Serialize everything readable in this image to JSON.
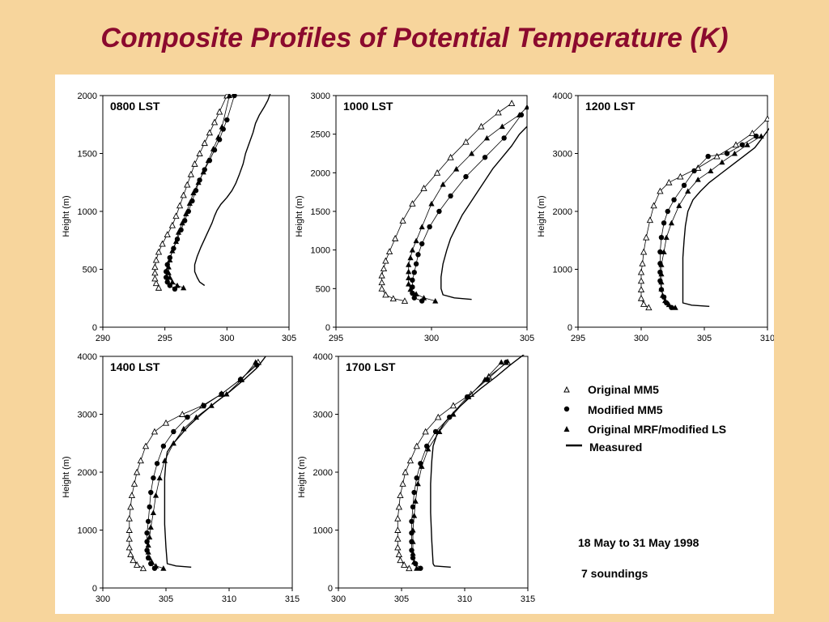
{
  "slide": {
    "title": "Composite Profiles of Potential Temperature (K)"
  },
  "legend": {
    "items": [
      {
        "label": "Original MM5",
        "marker": "open-triangle"
      },
      {
        "label": "Modified MM5",
        "marker": "filled-circle"
      },
      {
        "label": "Original MRF/modified LS",
        "marker": "filled-triangle"
      },
      {
        "label": "Measured",
        "marker": "line"
      }
    ]
  },
  "notes": {
    "period": "18 May to 31 May 1998",
    "soundings": "7 soundings"
  },
  "colors": {
    "background": "#f7d59c",
    "title": "#8b0a2e",
    "plot": "#000000"
  },
  "chart_data": [
    {
      "type": "line",
      "panel_label": "0800 LST",
      "ylabel": "Height (m)",
      "xlim": [
        290,
        305
      ],
      "ylim": [
        0,
        2000
      ],
      "xticks": [
        290,
        295,
        300,
        305
      ],
      "yticks": [
        0,
        500,
        1000,
        1500,
        2000
      ],
      "series": [
        {
          "name": "Original MM5",
          "marker": "open-triangle",
          "x": [
            294.5,
            294.3,
            294.2,
            294.2,
            294.2,
            294.3,
            294.5,
            294.8,
            295.2,
            295.6,
            295.9,
            296.2,
            296.5,
            296.8,
            297.1,
            297.4,
            297.8,
            298.2,
            298.6,
            299.0,
            299.4,
            300.0
          ],
          "y": [
            340,
            380,
            420,
            470,
            520,
            580,
            650,
            720,
            800,
            880,
            960,
            1050,
            1140,
            1230,
            1320,
            1410,
            1500,
            1590,
            1680,
            1770,
            1860,
            2000
          ]
        },
        {
          "name": "Modified MM5",
          "marker": "filled-circle",
          "x": [
            295.8,
            295.4,
            295.2,
            295.1,
            295.1,
            295.2,
            295.4,
            295.7,
            296.0,
            296.3,
            296.6,
            296.9,
            297.2,
            297.5,
            297.8,
            298.2,
            298.6,
            299.0,
            299.4,
            299.7,
            300.0,
            300.6
          ],
          "y": [
            330,
            360,
            390,
            430,
            480,
            540,
            600,
            680,
            760,
            840,
            920,
            1000,
            1090,
            1180,
            1270,
            1360,
            1440,
            1530,
            1620,
            1710,
            1790,
            2000
          ]
        },
        {
          "name": "Original MRF/modified LS",
          "marker": "filled-triangle",
          "x": [
            296.5,
            296.0,
            295.6,
            295.4,
            295.3,
            295.3,
            295.4,
            295.6,
            295.9,
            296.1,
            296.4,
            296.7,
            297.0,
            297.3,
            297.7,
            298.1,
            298.5,
            298.9,
            299.3,
            299.6,
            300.2
          ],
          "y": [
            340,
            360,
            390,
            430,
            470,
            520,
            580,
            660,
            740,
            820,
            900,
            980,
            1070,
            1160,
            1250,
            1340,
            1440,
            1540,
            1640,
            1730,
            2000
          ]
        },
        {
          "name": "Measured",
          "marker": "line",
          "x": [
            298.2,
            297.8,
            297.6,
            297.4,
            297.4,
            297.6,
            297.9,
            298.2,
            298.5,
            298.8,
            299.0,
            299.2,
            299.5,
            300.0,
            300.4,
            300.7,
            301.0,
            301.3,
            301.5,
            301.8,
            302.1,
            302.3,
            302.6,
            303.0,
            303.3,
            303.5
          ],
          "y": [
            360,
            390,
            430,
            480,
            540,
            610,
            690,
            760,
            830,
            900,
            960,
            1010,
            1060,
            1120,
            1180,
            1240,
            1320,
            1410,
            1500,
            1590,
            1680,
            1760,
            1830,
            1900,
            1960,
            2020
          ]
        }
      ]
    },
    {
      "type": "line",
      "panel_label": "1000 LST",
      "ylabel": "Height (m)",
      "xlim": [
        295,
        305
      ],
      "ylim": [
        0,
        3000
      ],
      "xticks": [
        295,
        300,
        305
      ],
      "yticks": [
        0,
        500,
        1000,
        1500,
        2000,
        2500,
        3000
      ],
      "series": [
        {
          "name": "Original MM5",
          "marker": "open-triangle",
          "x": [
            298.6,
            298.0,
            297.6,
            297.4,
            297.4,
            297.4,
            297.5,
            297.6,
            297.8,
            298.1,
            298.5,
            299.0,
            299.6,
            300.3,
            301.0,
            301.8,
            302.6,
            303.5,
            304.2
          ],
          "y": [
            340,
            370,
            420,
            500,
            580,
            670,
            760,
            860,
            980,
            1150,
            1380,
            1600,
            1800,
            2000,
            2200,
            2400,
            2600,
            2780,
            2900
          ]
        },
        {
          "name": "Modified MM5",
          "marker": "filled-circle",
          "x": [
            299.5,
            299.1,
            299.0,
            299.0,
            299.0,
            299.1,
            299.2,
            299.3,
            299.5,
            299.9,
            300.4,
            301.0,
            301.8,
            302.8,
            303.8,
            304.7
          ],
          "y": [
            340,
            380,
            440,
            520,
            610,
            710,
            820,
            940,
            1080,
            1300,
            1500,
            1700,
            1950,
            2200,
            2450,
            2750
          ]
        },
        {
          "name": "Original MRF/modified LS",
          "marker": "filled-triangle",
          "x": [
            300.2,
            299.6,
            299.2,
            298.9,
            298.8,
            298.8,
            298.8,
            298.8,
            298.9,
            299.0,
            299.2,
            299.5,
            300.0,
            300.6,
            301.3,
            302.1,
            302.9,
            303.7,
            304.6,
            305.0
          ],
          "y": [
            340,
            380,
            430,
            490,
            560,
            640,
            720,
            810,
            900,
            1000,
            1120,
            1300,
            1600,
            1850,
            2050,
            2250,
            2450,
            2600,
            2750,
            2850
          ]
        },
        {
          "name": "Measured",
          "marker": "line",
          "x": [
            302.1,
            301.2,
            300.6,
            300.5,
            300.5,
            300.6,
            300.8,
            301.0,
            301.3,
            301.6,
            302.0,
            302.4,
            302.8,
            303.2,
            303.7,
            304.2,
            304.6,
            305.0
          ],
          "y": [
            360,
            380,
            420,
            500,
            650,
            820,
            1000,
            1150,
            1300,
            1450,
            1600,
            1750,
            1900,
            2050,
            2200,
            2350,
            2500,
            2600
          ]
        }
      ]
    },
    {
      "type": "line",
      "panel_label": "1200 LST",
      "ylabel": "Height (m)",
      "xlim": [
        295,
        310
      ],
      "ylim": [
        0,
        4000
      ],
      "xticks": [
        295,
        300,
        305,
        310
      ],
      "yticks": [
        0,
        1000,
        2000,
        3000,
        4000
      ],
      "series": [
        {
          "name": "Original MM5",
          "marker": "open-triangle",
          "x": [
            300.6,
            300.2,
            300.0,
            300.0,
            300.0,
            300.0,
            300.1,
            300.2,
            300.4,
            300.7,
            301.0,
            301.5,
            302.2,
            303.1,
            304.5,
            306.0,
            307.5,
            308.8,
            310.0
          ],
          "y": [
            340,
            400,
            500,
            650,
            800,
            950,
            1100,
            1300,
            1550,
            1850,
            2100,
            2350,
            2500,
            2600,
            2750,
            2950,
            3150,
            3350,
            3600
          ]
        },
        {
          "name": "Modified MM5",
          "marker": "filled-circle",
          "x": [
            302.4,
            302.0,
            301.8,
            301.6,
            301.5,
            301.5,
            301.5,
            301.5,
            301.6,
            301.8,
            302.1,
            302.6,
            303.4,
            304.2,
            305.3,
            306.8,
            308.0,
            309.1
          ],
          "y": [
            340,
            420,
            520,
            650,
            800,
            950,
            1100,
            1300,
            1550,
            1800,
            2000,
            2200,
            2450,
            2700,
            2950,
            3000,
            3150,
            3300
          ]
        },
        {
          "name": "Original MRF/modified LS",
          "marker": "filled-triangle",
          "x": [
            302.7,
            302.2,
            301.9,
            301.7,
            301.6,
            301.6,
            301.6,
            301.6,
            301.8,
            302.0,
            302.4,
            303.0,
            303.7,
            304.5,
            305.5,
            306.4,
            307.4,
            308.4,
            309.5
          ],
          "y": [
            340,
            390,
            460,
            550,
            660,
            780,
            920,
            1080,
            1300,
            1550,
            1800,
            2100,
            2350,
            2550,
            2700,
            2850,
            3000,
            3150,
            3300
          ]
        },
        {
          "name": "Measured",
          "marker": "line",
          "x": [
            305.4,
            304.0,
            303.3,
            303.3,
            303.3,
            303.3,
            303.4,
            303.5,
            303.7,
            304.1,
            304.7,
            305.4,
            306.3,
            307.2,
            308.1,
            309.0,
            309.7,
            310.2
          ],
          "y": [
            360,
            380,
            420,
            600,
            900,
            1200,
            1500,
            1750,
            2000,
            2200,
            2350,
            2500,
            2650,
            2800,
            2950,
            3100,
            3300,
            3450
          ]
        }
      ]
    },
    {
      "type": "line",
      "panel_label": "1400 LST",
      "ylabel": "Height (m)",
      "xlim": [
        300,
        315
      ],
      "ylim": [
        0,
        4000
      ],
      "xticks": [
        300,
        305,
        310,
        315
      ],
      "yticks": [
        0,
        1000,
        2000,
        3000,
        4000
      ],
      "series": [
        {
          "name": "Original MM5",
          "marker": "open-triangle",
          "x": [
            303.2,
            302.7,
            302.4,
            302.2,
            302.1,
            302.1,
            302.1,
            302.1,
            302.2,
            302.3,
            302.5,
            302.7,
            303.0,
            303.4,
            304.1,
            305.0,
            306.3,
            307.9,
            309.4,
            310.9,
            312.3
          ],
          "y": [
            340,
            400,
            480,
            580,
            700,
            850,
            1000,
            1200,
            1400,
            1600,
            1800,
            2000,
            2200,
            2450,
            2700,
            2850,
            3000,
            3150,
            3350,
            3600,
            3900
          ]
        },
        {
          "name": "Modified MM5",
          "marker": "filled-circle",
          "x": [
            304.1,
            303.8,
            303.6,
            303.5,
            303.5,
            303.5,
            303.6,
            303.7,
            303.8,
            304.0,
            304.3,
            304.8,
            305.6,
            306.7,
            308.0,
            309.4,
            310.9,
            312.2
          ],
          "y": [
            340,
            420,
            520,
            650,
            800,
            950,
            1150,
            1400,
            1650,
            1900,
            2150,
            2450,
            2700,
            2950,
            3150,
            3350,
            3600,
            3850
          ]
        },
        {
          "name": "Original MRF/modified LS",
          "marker": "filled-triangle",
          "x": [
            304.8,
            304.2,
            303.9,
            303.7,
            303.6,
            303.6,
            303.7,
            303.8,
            304.0,
            304.2,
            304.5,
            304.9,
            305.6,
            306.4,
            307.4,
            308.6,
            309.8,
            311.0,
            312.1
          ],
          "y": [
            340,
            380,
            440,
            520,
            620,
            740,
            880,
            1050,
            1300,
            1600,
            1900,
            2200,
            2500,
            2750,
            2950,
            3150,
            3350,
            3600,
            3900
          ]
        },
        {
          "name": "Measured",
          "marker": "line",
          "x": [
            307.0,
            305.8,
            305.1,
            305.0,
            304.9,
            304.9,
            304.9,
            305.0,
            305.1,
            305.4,
            306.0,
            306.8,
            307.8,
            308.9,
            310.1,
            311.2,
            312.2,
            312.9
          ],
          "y": [
            360,
            380,
            420,
            700,
            1100,
            1500,
            1900,
            2200,
            2350,
            2450,
            2600,
            2800,
            3000,
            3200,
            3400,
            3600,
            3800,
            4000
          ]
        }
      ]
    },
    {
      "type": "line",
      "panel_label": "1700 LST",
      "ylabel": "Height (m)",
      "xlim": [
        300,
        315
      ],
      "ylim": [
        0,
        4000
      ],
      "xticks": [
        300,
        305,
        310,
        315
      ],
      "yticks": [
        0,
        1000,
        2000,
        3000,
        4000
      ],
      "series": [
        {
          "name": "Original MM5",
          "marker": "open-triangle",
          "x": [
            305.6,
            305.2,
            304.9,
            304.8,
            304.7,
            304.7,
            304.7,
            304.7,
            304.8,
            304.9,
            305.1,
            305.3,
            305.7,
            306.2,
            306.9,
            307.9,
            309.1,
            310.5,
            311.9,
            313.4
          ],
          "y": [
            340,
            400,
            480,
            580,
            700,
            850,
            1000,
            1200,
            1400,
            1600,
            1800,
            2000,
            2200,
            2450,
            2700,
            2950,
            3150,
            3350,
            3650,
            3900
          ]
        },
        {
          "name": "Modified MM5",
          "marker": "filled-circle",
          "x": [
            306.5,
            306.1,
            305.9,
            305.8,
            305.8,
            305.8,
            305.8,
            305.9,
            306.0,
            306.2,
            306.5,
            307.0,
            307.7,
            308.8,
            310.2,
            311.8,
            313.3
          ],
          "y": [
            340,
            420,
            520,
            650,
            800,
            950,
            1150,
            1400,
            1650,
            1900,
            2150,
            2450,
            2700,
            2950,
            3300,
            3600,
            3900
          ]
        },
        {
          "name": "Original MRF/modified LS",
          "marker": "filled-triangle",
          "x": [
            306.2,
            306.0,
            305.9,
            305.9,
            305.9,
            306.0,
            306.1,
            306.3,
            306.6,
            307.1,
            308.0,
            309.1,
            310.3,
            311.6,
            312.9
          ],
          "y": [
            340,
            450,
            600,
            800,
            1000,
            1250,
            1500,
            1800,
            2100,
            2400,
            2700,
            3000,
            3300,
            3600,
            3900
          ]
        },
        {
          "name": "Measured",
          "marker": "line",
          "x": [
            308.9,
            307.6,
            307.5,
            307.4,
            307.3,
            307.3,
            307.4,
            307.5,
            307.8,
            308.4,
            309.2,
            310.2,
            311.3,
            312.5,
            313.6,
            314.8
          ],
          "y": [
            360,
            380,
            420,
            800,
            1300,
            1800,
            2200,
            2450,
            2650,
            2850,
            3050,
            3250,
            3450,
            3650,
            3850,
            4050
          ]
        }
      ]
    }
  ]
}
